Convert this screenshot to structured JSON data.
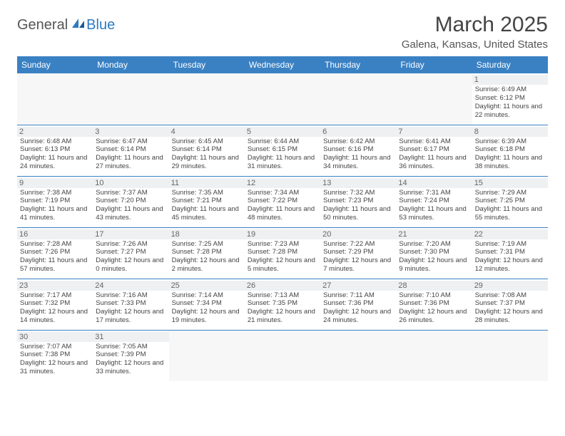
{
  "brand": {
    "general": "General",
    "blue": "Blue"
  },
  "title": "March 2025",
  "location": "Galena, Kansas, United States",
  "dayHeaders": [
    "Sunday",
    "Monday",
    "Tuesday",
    "Wednesday",
    "Thursday",
    "Friday",
    "Saturday"
  ],
  "colors": {
    "headerBg": "#3a81c4",
    "borderColor": "#3a81c4",
    "logoBlue": "#2d7bbf"
  },
  "grid": [
    [
      null,
      null,
      null,
      null,
      null,
      null,
      {
        "n": "1",
        "sr": "6:49 AM",
        "ss": "6:12 PM",
        "dl": "11 hours and 22 minutes."
      }
    ],
    [
      {
        "n": "2",
        "sr": "6:48 AM",
        "ss": "6:13 PM",
        "dl": "11 hours and 24 minutes."
      },
      {
        "n": "3",
        "sr": "6:47 AM",
        "ss": "6:14 PM",
        "dl": "11 hours and 27 minutes."
      },
      {
        "n": "4",
        "sr": "6:45 AM",
        "ss": "6:14 PM",
        "dl": "11 hours and 29 minutes."
      },
      {
        "n": "5",
        "sr": "6:44 AM",
        "ss": "6:15 PM",
        "dl": "11 hours and 31 minutes."
      },
      {
        "n": "6",
        "sr": "6:42 AM",
        "ss": "6:16 PM",
        "dl": "11 hours and 34 minutes."
      },
      {
        "n": "7",
        "sr": "6:41 AM",
        "ss": "6:17 PM",
        "dl": "11 hours and 36 minutes."
      },
      {
        "n": "8",
        "sr": "6:39 AM",
        "ss": "6:18 PM",
        "dl": "11 hours and 38 minutes."
      }
    ],
    [
      {
        "n": "9",
        "sr": "7:38 AM",
        "ss": "7:19 PM",
        "dl": "11 hours and 41 minutes."
      },
      {
        "n": "10",
        "sr": "7:37 AM",
        "ss": "7:20 PM",
        "dl": "11 hours and 43 minutes."
      },
      {
        "n": "11",
        "sr": "7:35 AM",
        "ss": "7:21 PM",
        "dl": "11 hours and 45 minutes."
      },
      {
        "n": "12",
        "sr": "7:34 AM",
        "ss": "7:22 PM",
        "dl": "11 hours and 48 minutes."
      },
      {
        "n": "13",
        "sr": "7:32 AM",
        "ss": "7:23 PM",
        "dl": "11 hours and 50 minutes."
      },
      {
        "n": "14",
        "sr": "7:31 AM",
        "ss": "7:24 PM",
        "dl": "11 hours and 53 minutes."
      },
      {
        "n": "15",
        "sr": "7:29 AM",
        "ss": "7:25 PM",
        "dl": "11 hours and 55 minutes."
      }
    ],
    [
      {
        "n": "16",
        "sr": "7:28 AM",
        "ss": "7:26 PM",
        "dl": "11 hours and 57 minutes."
      },
      {
        "n": "17",
        "sr": "7:26 AM",
        "ss": "7:27 PM",
        "dl": "12 hours and 0 minutes."
      },
      {
        "n": "18",
        "sr": "7:25 AM",
        "ss": "7:28 PM",
        "dl": "12 hours and 2 minutes."
      },
      {
        "n": "19",
        "sr": "7:23 AM",
        "ss": "7:28 PM",
        "dl": "12 hours and 5 minutes."
      },
      {
        "n": "20",
        "sr": "7:22 AM",
        "ss": "7:29 PM",
        "dl": "12 hours and 7 minutes."
      },
      {
        "n": "21",
        "sr": "7:20 AM",
        "ss": "7:30 PM",
        "dl": "12 hours and 9 minutes."
      },
      {
        "n": "22",
        "sr": "7:19 AM",
        "ss": "7:31 PM",
        "dl": "12 hours and 12 minutes."
      }
    ],
    [
      {
        "n": "23",
        "sr": "7:17 AM",
        "ss": "7:32 PM",
        "dl": "12 hours and 14 minutes."
      },
      {
        "n": "24",
        "sr": "7:16 AM",
        "ss": "7:33 PM",
        "dl": "12 hours and 17 minutes."
      },
      {
        "n": "25",
        "sr": "7:14 AM",
        "ss": "7:34 PM",
        "dl": "12 hours and 19 minutes."
      },
      {
        "n": "26",
        "sr": "7:13 AM",
        "ss": "7:35 PM",
        "dl": "12 hours and 21 minutes."
      },
      {
        "n": "27",
        "sr": "7:11 AM",
        "ss": "7:36 PM",
        "dl": "12 hours and 24 minutes."
      },
      {
        "n": "28",
        "sr": "7:10 AM",
        "ss": "7:36 PM",
        "dl": "12 hours and 26 minutes."
      },
      {
        "n": "29",
        "sr": "7:08 AM",
        "ss": "7:37 PM",
        "dl": "12 hours and 28 minutes."
      }
    ],
    [
      {
        "n": "30",
        "sr": "7:07 AM",
        "ss": "7:38 PM",
        "dl": "12 hours and 31 minutes."
      },
      {
        "n": "31",
        "sr": "7:05 AM",
        "ss": "7:39 PM",
        "dl": "12 hours and 33 minutes."
      },
      null,
      null,
      null,
      null,
      null
    ]
  ],
  "labels": {
    "sunrise": "Sunrise:",
    "sunset": "Sunset:",
    "daylight": "Daylight:"
  }
}
